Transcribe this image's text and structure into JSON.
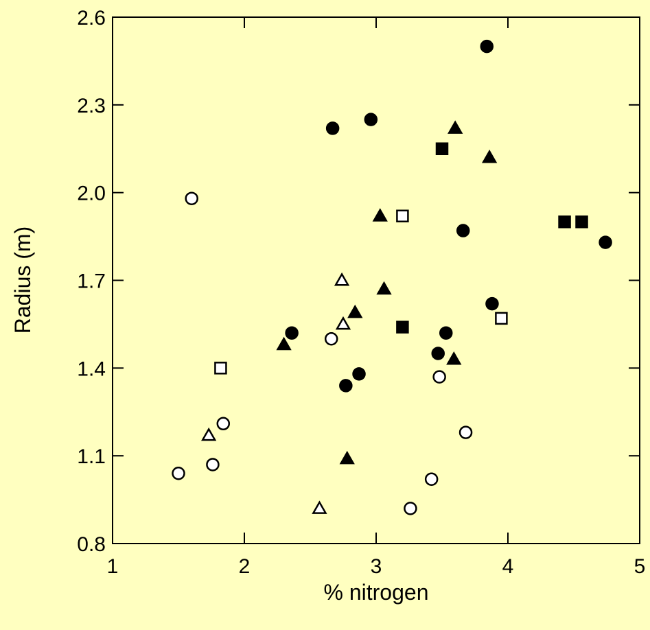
{
  "chart_data": {
    "type": "scatter",
    "title": "",
    "xlabel": "% nitrogen",
    "ylabel": "Radius (m)",
    "xlim": [
      1,
      5
    ],
    "ylim": [
      0.8,
      2.6
    ],
    "xticks": [
      1,
      2,
      3,
      4,
      5
    ],
    "xtick_labels": [
      "1",
      "2",
      "3",
      "4",
      "5"
    ],
    "yticks": [
      0.8,
      1.1,
      1.4,
      1.7,
      2.0,
      2.3,
      2.6
    ],
    "ytick_labels": [
      "0.8",
      "1.1",
      "1.4",
      "1.7",
      "2.0",
      "2.3",
      "2.6"
    ],
    "grid": false,
    "legend": "none",
    "series": [
      {
        "marker": "filled-circle",
        "points": [
          {
            "x": 3.84,
            "y": 2.5
          },
          {
            "x": 2.67,
            "y": 2.22
          },
          {
            "x": 2.96,
            "y": 2.25
          },
          {
            "x": 3.66,
            "y": 1.87
          },
          {
            "x": 4.74,
            "y": 1.83
          },
          {
            "x": 3.88,
            "y": 1.62
          },
          {
            "x": 2.36,
            "y": 1.52
          },
          {
            "x": 3.53,
            "y": 1.52
          },
          {
            "x": 3.47,
            "y": 1.45
          },
          {
            "x": 2.87,
            "y": 1.38
          },
          {
            "x": 2.77,
            "y": 1.34
          }
        ]
      },
      {
        "marker": "open-circle",
        "points": [
          {
            "x": 1.6,
            "y": 1.98
          },
          {
            "x": 2.66,
            "y": 1.5
          },
          {
            "x": 3.48,
            "y": 1.37
          },
          {
            "x": 1.84,
            "y": 1.21
          },
          {
            "x": 3.68,
            "y": 1.18
          },
          {
            "x": 1.76,
            "y": 1.07
          },
          {
            "x": 1.5,
            "y": 1.04
          },
          {
            "x": 3.42,
            "y": 1.02
          },
          {
            "x": 3.26,
            "y": 0.92
          }
        ]
      },
      {
        "marker": "filled-triangle",
        "points": [
          {
            "x": 3.6,
            "y": 2.22
          },
          {
            "x": 3.86,
            "y": 2.12
          },
          {
            "x": 3.03,
            "y": 1.92
          },
          {
            "x": 3.06,
            "y": 1.67
          },
          {
            "x": 2.84,
            "y": 1.59
          },
          {
            "x": 2.3,
            "y": 1.48
          },
          {
            "x": 3.59,
            "y": 1.43
          },
          {
            "x": 2.78,
            "y": 1.09
          }
        ]
      },
      {
        "marker": "open-triangle",
        "points": [
          {
            "x": 2.74,
            "y": 1.7
          },
          {
            "x": 2.75,
            "y": 1.55
          },
          {
            "x": 1.73,
            "y": 1.17
          },
          {
            "x": 2.57,
            "y": 0.92
          }
        ]
      },
      {
        "marker": "filled-square",
        "points": [
          {
            "x": 3.5,
            "y": 2.15
          },
          {
            "x": 4.43,
            "y": 1.9
          },
          {
            "x": 4.56,
            "y": 1.9
          },
          {
            "x": 3.2,
            "y": 1.54
          }
        ]
      },
      {
        "marker": "open-square",
        "points": [
          {
            "x": 3.2,
            "y": 1.92
          },
          {
            "x": 3.95,
            "y": 1.57
          },
          {
            "x": 1.82,
            "y": 1.4
          }
        ]
      }
    ]
  }
}
